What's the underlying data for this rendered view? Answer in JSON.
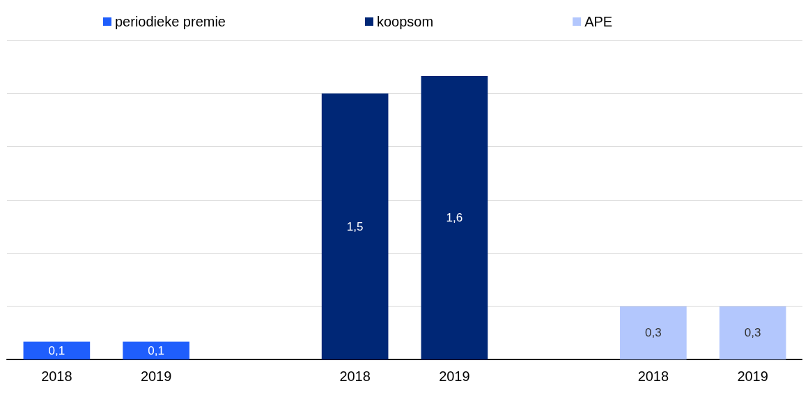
{
  "chart_data": {
    "type": "bar",
    "categories": [
      "2018",
      "2019",
      null,
      "2018",
      "2019",
      null,
      "2018",
      "2019"
    ],
    "series": [
      {
        "name": "periodieke premie",
        "color": "#1f5efc",
        "values": [
          0.1,
          0.1,
          null,
          null,
          null,
          null,
          null,
          null
        ],
        "value_labels": [
          "0,1",
          "0,1",
          null,
          null,
          null,
          null,
          null,
          null
        ]
      },
      {
        "name": "koopsom",
        "color": "#002776",
        "values": [
          null,
          null,
          null,
          1.5,
          1.6,
          null,
          null,
          null
        ],
        "value_labels": [
          null,
          null,
          null,
          "1,5",
          "1,6",
          null,
          null,
          null
        ]
      },
      {
        "name": "APE",
        "color": "#b3c7fd",
        "values": [
          null,
          null,
          null,
          null,
          null,
          null,
          0.3,
          0.3
        ],
        "value_labels": [
          null,
          null,
          null,
          null,
          null,
          null,
          "0,3",
          "0,3"
        ]
      }
    ],
    "grid": "y",
    "legend": "top",
    "tick_labels": "x"
  }
}
